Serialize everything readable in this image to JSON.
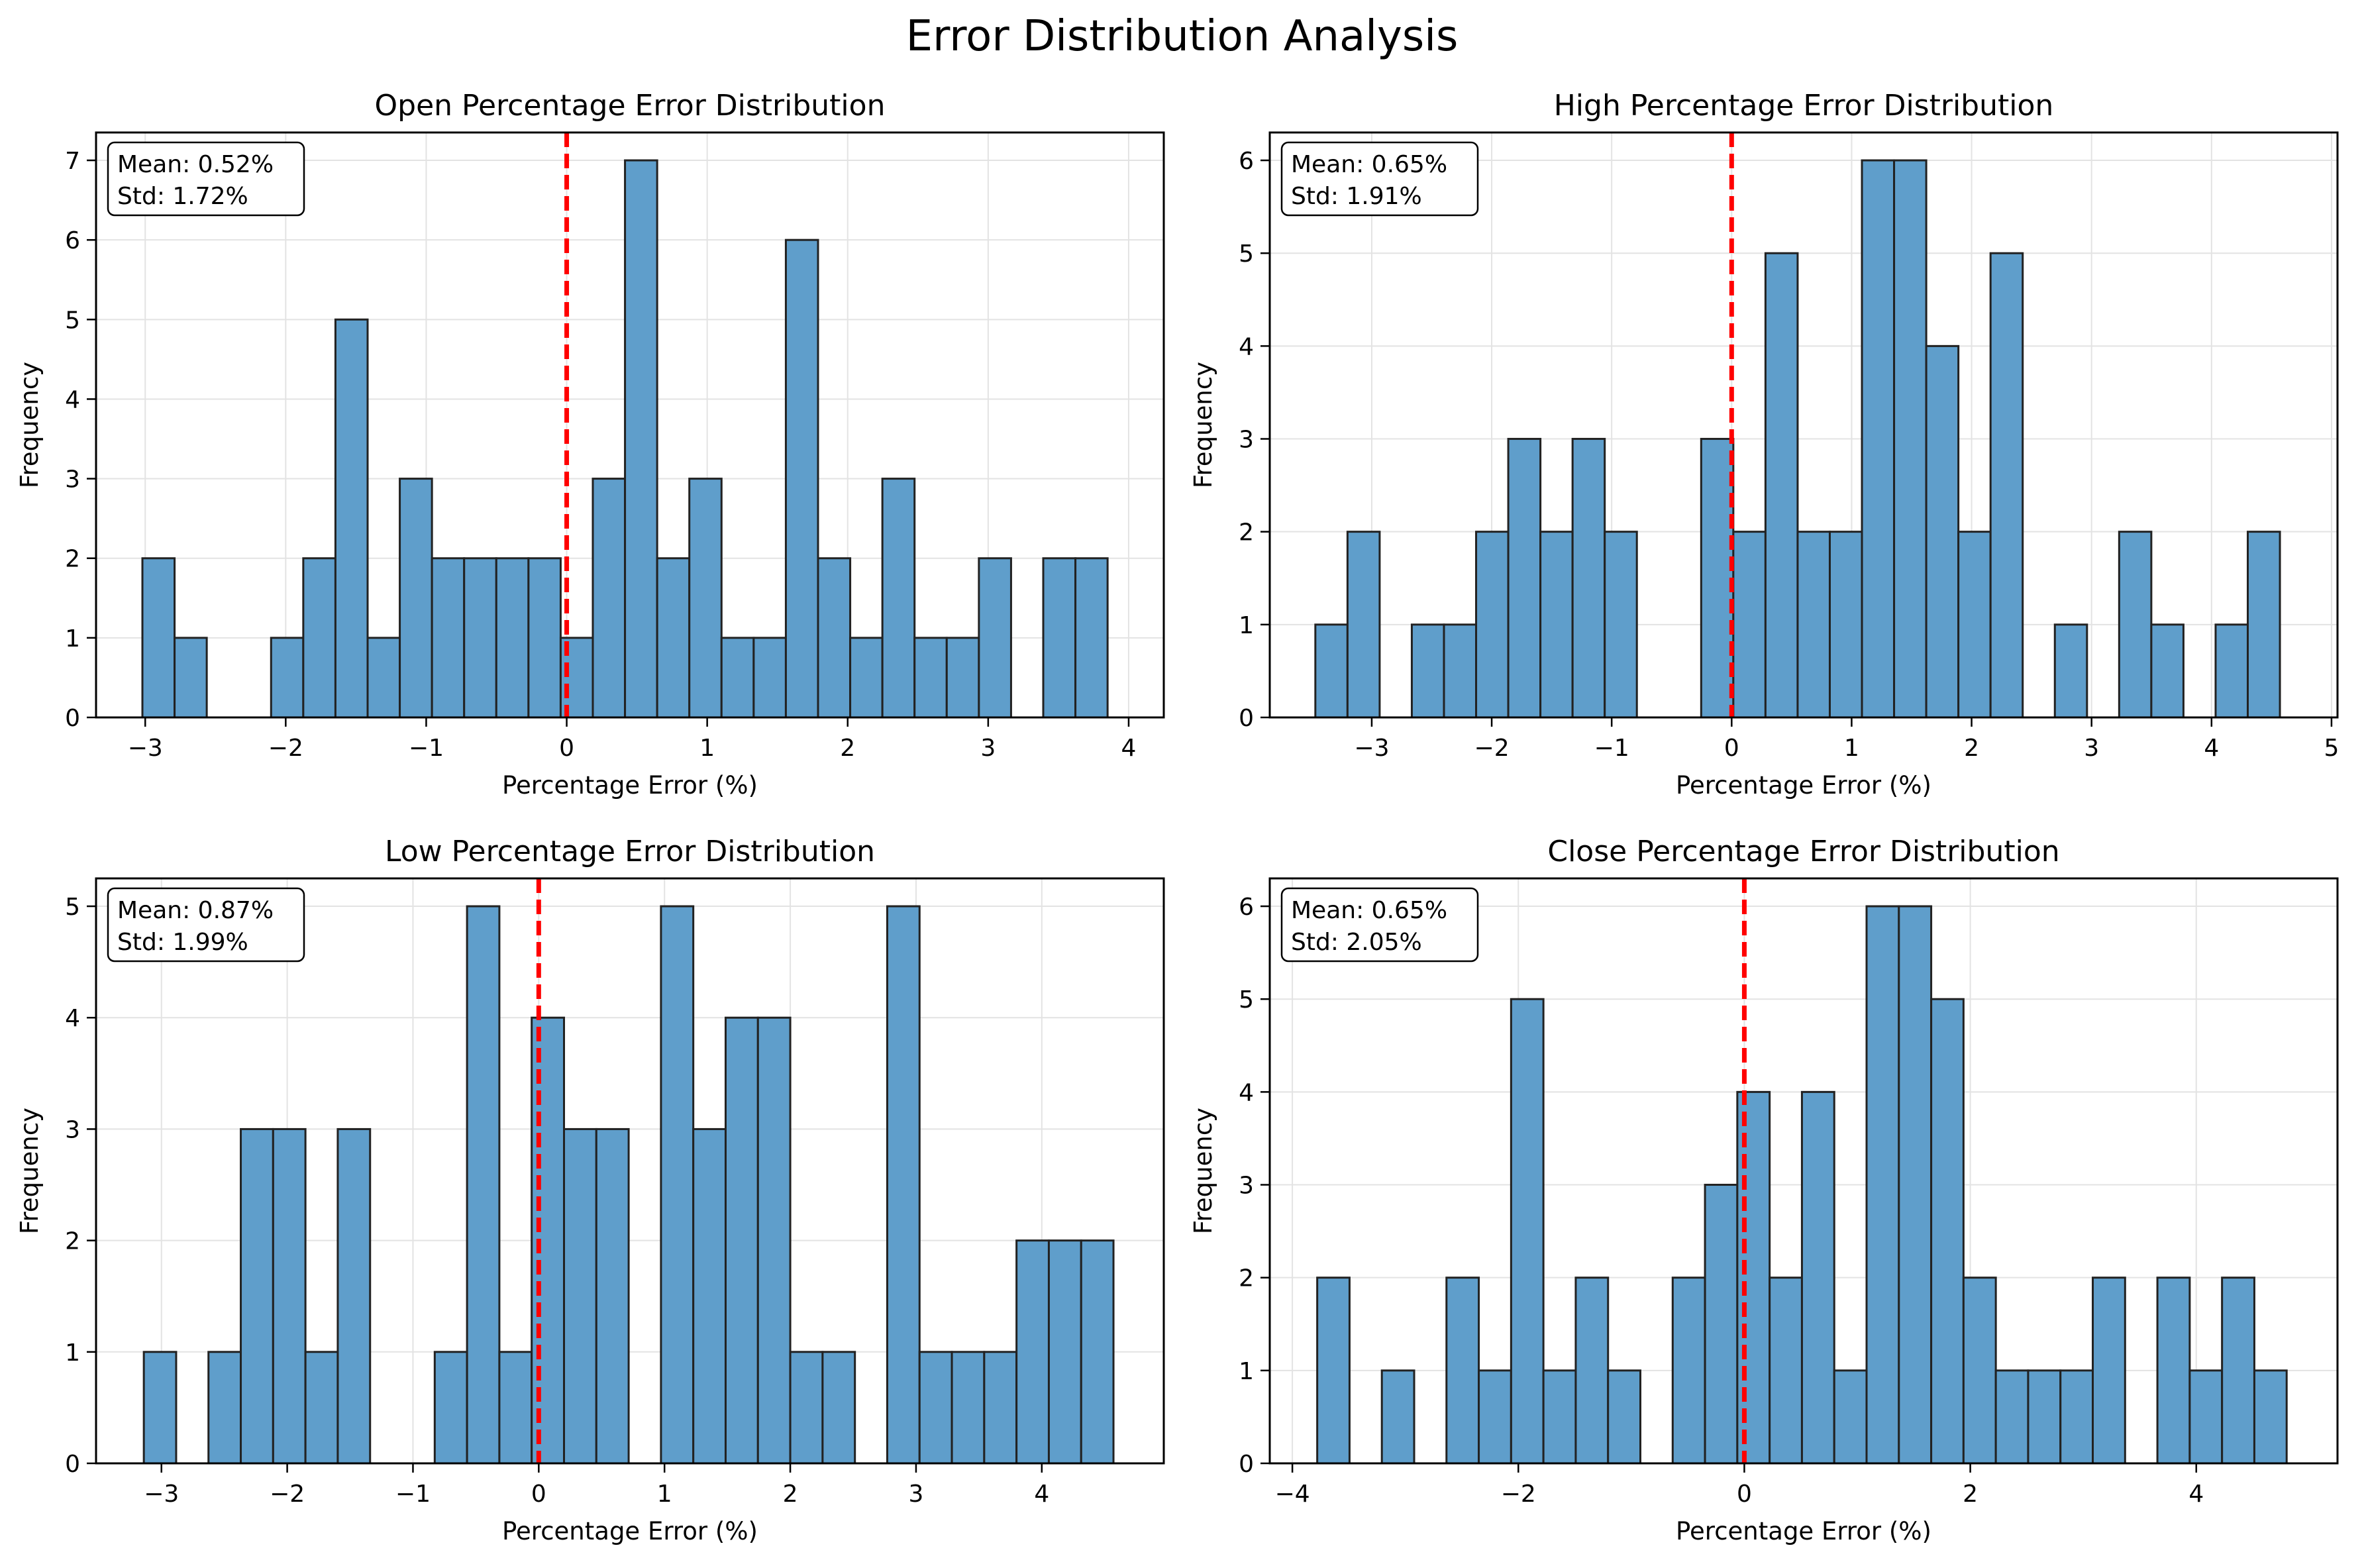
{
  "figure": {
    "title": "Error Distribution Analysis"
  },
  "colors": {
    "bar": "#5f9ecb",
    "bar_edge": "#222222",
    "zero_line": "#ff0000",
    "grid": "#e3e3e3"
  },
  "chart_data": [
    {
      "type": "bar",
      "title": "Open Percentage Error Distribution",
      "xlabel": "Percentage Error (%)",
      "ylabel": "Frequency",
      "xlim": [
        -3.35,
        4.25
      ],
      "ylim": [
        0,
        7.35
      ],
      "xticks": [
        -3,
        -2,
        -1,
        0,
        1,
        2,
        3,
        4
      ],
      "yticks": [
        0,
        1,
        2,
        3,
        4,
        5,
        6,
        7
      ],
      "bin_start": -3.02,
      "bin_width": 0.229,
      "counts": [
        2,
        1,
        0,
        0,
        1,
        2,
        5,
        1,
        3,
        2,
        2,
        2,
        2,
        1,
        3,
        7,
        2,
        3,
        1,
        1,
        6,
        2,
        1,
        3,
        1,
        1,
        2,
        0,
        2,
        2
      ],
      "zero_line": 0,
      "stats": {
        "mean": "Mean: 0.52%",
        "std": "Std: 1.72%"
      },
      "grid": true
    },
    {
      "type": "bar",
      "title": "High Percentage Error Distribution",
      "xlabel": "Percentage Error (%)",
      "ylabel": "Frequency",
      "xlim": [
        -3.85,
        5.05
      ],
      "ylim": [
        0,
        6.3
      ],
      "xticks": [
        -3,
        -2,
        -1,
        0,
        1,
        2,
        3,
        4,
        5
      ],
      "yticks": [
        0,
        1,
        2,
        3,
        4,
        5,
        6
      ],
      "bin_start": -3.47,
      "bin_width": 0.268,
      "counts": [
        1,
        2,
        0,
        1,
        1,
        2,
        3,
        2,
        3,
        2,
        0,
        0,
        3,
        2,
        5,
        2,
        2,
        6,
        6,
        4,
        2,
        5,
        0,
        1,
        0,
        2,
        1,
        0,
        1,
        2
      ],
      "zero_line": 0,
      "stats": {
        "mean": "Mean: 0.65%",
        "std": "Std: 1.91%"
      },
      "grid": true
    },
    {
      "type": "bar",
      "title": "Low Percentage Error Distribution",
      "xlabel": "Percentage Error (%)",
      "ylabel": "Frequency",
      "xlim": [
        -3.52,
        4.97
      ],
      "ylim": [
        0,
        5.25
      ],
      "xticks": [
        -3,
        -2,
        -1,
        0,
        1,
        2,
        3,
        4
      ],
      "yticks": [
        0,
        1,
        2,
        3,
        4,
        5
      ],
      "bin_start": -3.14,
      "bin_width": 0.257,
      "counts": [
        1,
        0,
        1,
        3,
        3,
        1,
        3,
        0,
        0,
        1,
        5,
        1,
        4,
        3,
        3,
        0,
        5,
        3,
        4,
        4,
        1,
        1,
        0,
        5,
        1,
        1,
        1,
        2,
        2,
        2
      ],
      "zero_line": 0,
      "stats": {
        "mean": "Mean: 0.87%",
        "std": "Std: 1.99%"
      },
      "grid": true
    },
    {
      "type": "bar",
      "title": "Close Percentage Error Distribution",
      "xlabel": "Percentage Error (%)",
      "ylabel": "Frequency",
      "xlim": [
        -4.2,
        5.25
      ],
      "ylim": [
        0,
        6.3
      ],
      "xticks": [
        -4,
        -2,
        0,
        2,
        4
      ],
      "yticks": [
        0,
        1,
        2,
        3,
        4,
        5,
        6
      ],
      "bin_start": -3.78,
      "bin_width": 0.286,
      "counts": [
        2,
        0,
        1,
        0,
        2,
        1,
        5,
        1,
        2,
        1,
        0,
        2,
        3,
        4,
        2,
        4,
        1,
        6,
        6,
        5,
        2,
        1,
        1,
        1,
        2,
        0,
        2,
        1,
        2,
        1
      ],
      "zero_line": 0,
      "stats": {
        "mean": "Mean: 0.65%",
        "std": "Std: 2.05%"
      },
      "grid": true
    }
  ]
}
